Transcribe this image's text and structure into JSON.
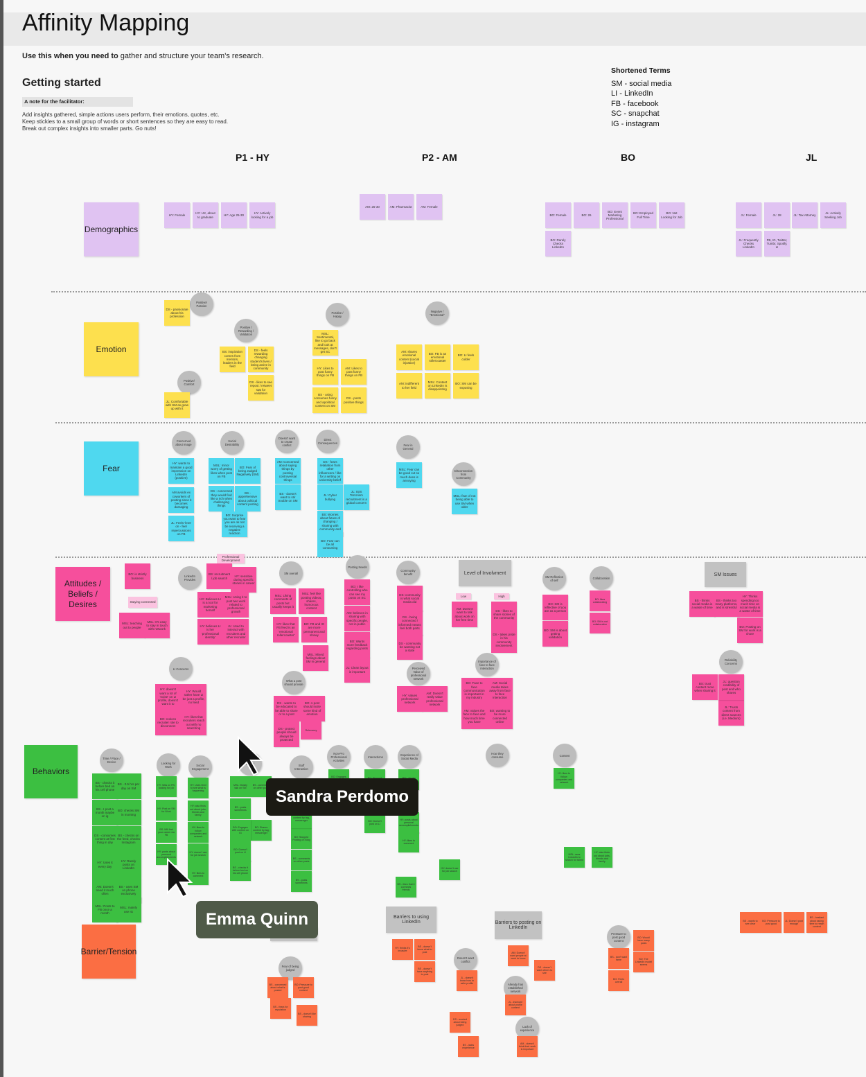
{
  "header": {
    "title": "Affinity Mapping",
    "intro_bold": "Use this when you need to",
    "intro_rest": " gather and structure your team's research.",
    "getting_started": "Getting started",
    "facilitator_heading": "A note for the facilitator:",
    "facilitator_text": "Add insights gathered, simple actions users perform, their emotions, quotes, etc. Keep stickies to a small group of words or short sentences so they are easy to read. Break out complex insights into smaller parts. Go nuts!"
  },
  "terms": {
    "heading": "Shortened Terms",
    "items": [
      "SM - social media",
      "LI - LinkedIn",
      "FB - facebook",
      "SC - snapchat",
      "IG - instagram"
    ]
  },
  "columns": [
    "P1 - HY",
    "P2 - AM",
    "BO",
    "JL"
  ],
  "categories": {
    "demographics": "Demographics",
    "emotion": "Emotion",
    "fear": "Fear",
    "attitudes": "Attitudes / Beliefs / Desires",
    "behaviors": "Behaviors",
    "barrier": "Barrier/Tension"
  },
  "colors": {
    "purple": "#e0c3f2",
    "yellow": "#fde04e",
    "cyan": "#4fd8ef",
    "pink": "#f64f9c",
    "green": "#3cbf41",
    "orange": "#fb6e43",
    "gray": "#bdbdbd"
  },
  "demographics_notes": {
    "hy": [
      "HY: Female",
      "HY: UX, about to graduate",
      "HY: Age 25-30",
      "HY: Actively looking for a job"
    ],
    "am": [
      "AM: 25-30",
      "AM: Pharmacist",
      "AM: Female"
    ],
    "bo": [
      "BO: Female",
      "BO: 26",
      "BO: Event Marketing Professional",
      "BO: Employed Full Time",
      "BO: Not Looking for Job",
      "BO: Rarely Checks LinkedIn"
    ],
    "jl": [
      "JL: Female",
      "JL: 28",
      "JL: Tax Attorney",
      "JL: Actively Seeking Job",
      "JL: Frequently Checks LinkedIn",
      "FB, IG, Twitter, Tumbr, Spotify, LI"
    ]
  },
  "emotion": {
    "circles": [
      "Positive/ Passion",
      "Positive / Rewarding / Validation",
      "Positive/ Comfort",
      "Positive / Happy",
      "Negative / \"Emotional\""
    ],
    "notes": [
      "DS - passionate about his profession",
      "BS: inspiration comes from mentors, leaders in the field",
      "DS - feels rewarding changing student's lives / being active in community",
      "DS - likes to see repost / retweet stat for validation",
      "JL: Comfortable with SM as grew up with it",
      "MSL: Sentimental, like to go back and look at messages, don't get SC",
      "HY: Likes to post funny things on FB",
      "AM: Likes to post funny things on FB",
      "BS - using consumes funny and apolitical content on SM",
      "DS - posts positive things",
      "AM: shares emotional content (social injustice)",
      "BO: FB is an emotional rollercoaster",
      "BO: LI feels colder",
      "AM: indifferent to her field",
      "MSL: Content on LinkedIn is disappointing",
      "BO: SM can be exposing"
    ]
  },
  "fear": {
    "circles": [
      "Concerned about Image",
      "Social Desirability",
      "Doesn't want to create conflict",
      "Direct Consequences",
      "Fear in General",
      "Disconnection from Community"
    ],
    "notes": [
      "HY: wants to maintain a good impression on LinkedIn (positive)",
      "AM avoids ex coworkers of posting since it becomes damaging",
      "JL: Feels 'less' on - feel repercussions on FB",
      "MSL: minor worry of getting likes when post on FB",
      "BO: Fear of being Judged Negatively (SM)",
      "DS - concerned they would find like a rich when challenging things",
      "BS - apprehensive about political content posting",
      "BO: Surprise you want to fear you are ok not be receiving a negative reaction",
      "AM: Concerned about saying things by posting controversial things",
      "BS - doesn't want to stir trouble on SM",
      "DS - fears retaliation from other influencers / like for a writing on university belief",
      "JL: Cyber bullying",
      "JL: ISIS Terrorism recruitment is a global concern",
      "BS: Worries about future of changing / sharing with community and people",
      "BO: Fear can be all consuming",
      "MSL: Fear can be good cut so much does is annoying",
      "MSL: fear of not being able to use SM when older"
    ]
  },
  "attitudes": {
    "circles": [
      "LinkedIn Provides",
      "SM overall",
      "Posting Needs",
      "Community benefit",
      "SM Reflection of self",
      "Collaboration",
      "LI Concerns",
      "What a post should provide",
      "Perceived Value of professional network",
      "Importance of face to face interaction",
      "Reliability Concerns"
    ],
    "boxes": [
      "Level of Involvment",
      "SM Issues"
    ],
    "light_labels": [
      "Professional Development",
      "Staying connected",
      "Low",
      "High"
    ],
    "notes": [
      "BO: is strictly business",
      "BS: recruitment / job search",
      "HY: sensitive during specific stories in career",
      "HY: Believes LI is a tool for marketing herself",
      "MSL: Using it to post two work related to professional growth",
      "HY: believes LI is her 'professional identity'",
      "JL: Used to interact with recruiters and other recruiter",
      "MSL: teaching out to people",
      "MSL: It's easy to stay in touch with network",
      "MSL: Liking comments of posts but usually keeps it",
      "MSL: feel like posting videos, shares, humorous content",
      "HY: likes that FB feed is an 'emotional rollercoaster'",
      "BO: FB and IG are more permanent and showy",
      "MSL: Mixed feelings about SM in general",
      "BO: I like controlling who can see my posts on SC",
      "AM: believes in sharing with specific people, not in public",
      "BO: Wants more feedback regarding posts",
      "JL: Clean layout is important",
      "DS: community is what social media did",
      "DS - being connected / informed means feel both parts",
      "DS - community be wanting not a state",
      "AM: Doesn't want to talk about work on her free time",
      "DS - likes to share stories of the community",
      "DS - takes pride in his community involvement",
      "BO: SM is reflective of you are as a person",
      "BO: SM is about getting validation",
      "BO: likes collaborating",
      "BO: SM is not collaborative",
      "BS - thinks social media is a waste of time",
      "BS - thinks too many platforms, and is stressful",
      "HY: Thinks spending too much time on social media is a waste of time",
      "BO: Posting on SM for work is a chore",
      "HY: doesn't want a lot of 'noise' on LI profile, doesn't want it to",
      "HY: Would rather have LI be just a profile, no feed",
      "BO: notices recruiter role to disconnect",
      "HY: likes that recruiters reach out with no searching",
      "DS - wants to be educated to be able to share or to a post",
      "BO: A post should incite some kind of emotion",
      "DS - protect people should always be protected",
      "Relevancy",
      "HY: values professional network",
      "AM: Doesn't really value professional network",
      "BO: Face to face communication is important in my industry",
      "AM: Social media takes away from face to face interaction",
      "AM: values the face to face and how much time you have",
      "BO: wanting to be more connected online",
      "BS: trust content more when sharing it",
      "JL: Trusts content from direct sources (i.e. Medium)",
      "JL: question credibility of post and who shares"
    ]
  },
  "behaviors": {
    "circles": [
      "Time / Place / Device",
      "Looking for Work",
      "Social Engagement",
      "Use of",
      "Stuff Interaction",
      "Non-Pro Professional Activities",
      "Interactions",
      "Experience of Social Media",
      "How they consume",
      "Content"
    ],
    "notes": [
      "BS - checks it before bed on his cell phone",
      "BS - 0.5 hrs per day on SM",
      "BS - I post a month maybe on ig",
      "BO: checks SM in morning",
      "DS - consumes content at first thing in day",
      "BS - checks on the feed, checks Instagram",
      "HY: Uses it every day",
      "HY: Rarely posts on LinkedIn",
      "AM: Doesn't need it much often",
      "BS - uses SM on phone exclusively",
      "MSL: Posts to FB once a month",
      "MSL: mainly use IG",
      "HY: Was on FB, looking for job",
      "HY: Post on SM for Work",
      "BS: Will find your career via FB",
      "HY: Uses feed to see what is happening",
      "HY: also finds out about jobs, friends and family",
      "HY: likes to follow companies and network",
      "HY: doesn't use for job search",
      "HY: likes to comment",
      "HY: posts about personal accomplishments",
      "MSL: Mostly talk on SM",
      "BS - comments on other posts",
      "BS - posts sometimes",
      "BO: Shares content by tag, messenger",
      "BO: Engages with content on IG",
      "BO: Stopped Posting on Blog",
      "BS - likes that it connects friends",
      "BO: Doesn't post on LI",
      "MSL: uses LinkedIn to search for talent"
    ]
  },
  "barriers": {
    "boxes": [
      "Barriers to using LinkedIn",
      "Barriers to posting on LinkedIn"
    ],
    "circles": [
      "Fear of being judged",
      "Doesn't want conflict",
      "Already has established network",
      "Lack of experience",
      "Pressure to post good content"
    ],
    "notes": [
      "HY: thinks it's invasive",
      "BS - doesn't know what to post",
      "BS - doesn't have anything to post",
      "AM: Doesn't want people at work to know",
      "DS - doesn't want others to see",
      "BS - concerned about what is posted",
      "BO: Pressure to post good content",
      "BS - fears for reputation",
      "BS - doesn't like sharing",
      "JL - doesn't know how to write profile",
      "DS - worried about being judged",
      "BS - lacks experience",
      "JL - insecure about profile content",
      "AM - doesn't think their work is important",
      "BS - don't want fame",
      "BO: Would have many posts",
      "BO: The LinkedIn model seems",
      "BO: Feels overall",
      "BS - wants to see clear",
      "BO: Pressure to post good",
      "JL: Doesn't post enough",
      "BS - hesitant about taking time to reach content"
    ]
  },
  "collaborators": [
    {
      "name": "Sandra Perdomo",
      "color": "#1b1a14"
    },
    {
      "name": "Emma Quinn",
      "color": "#4f5a48"
    }
  ]
}
